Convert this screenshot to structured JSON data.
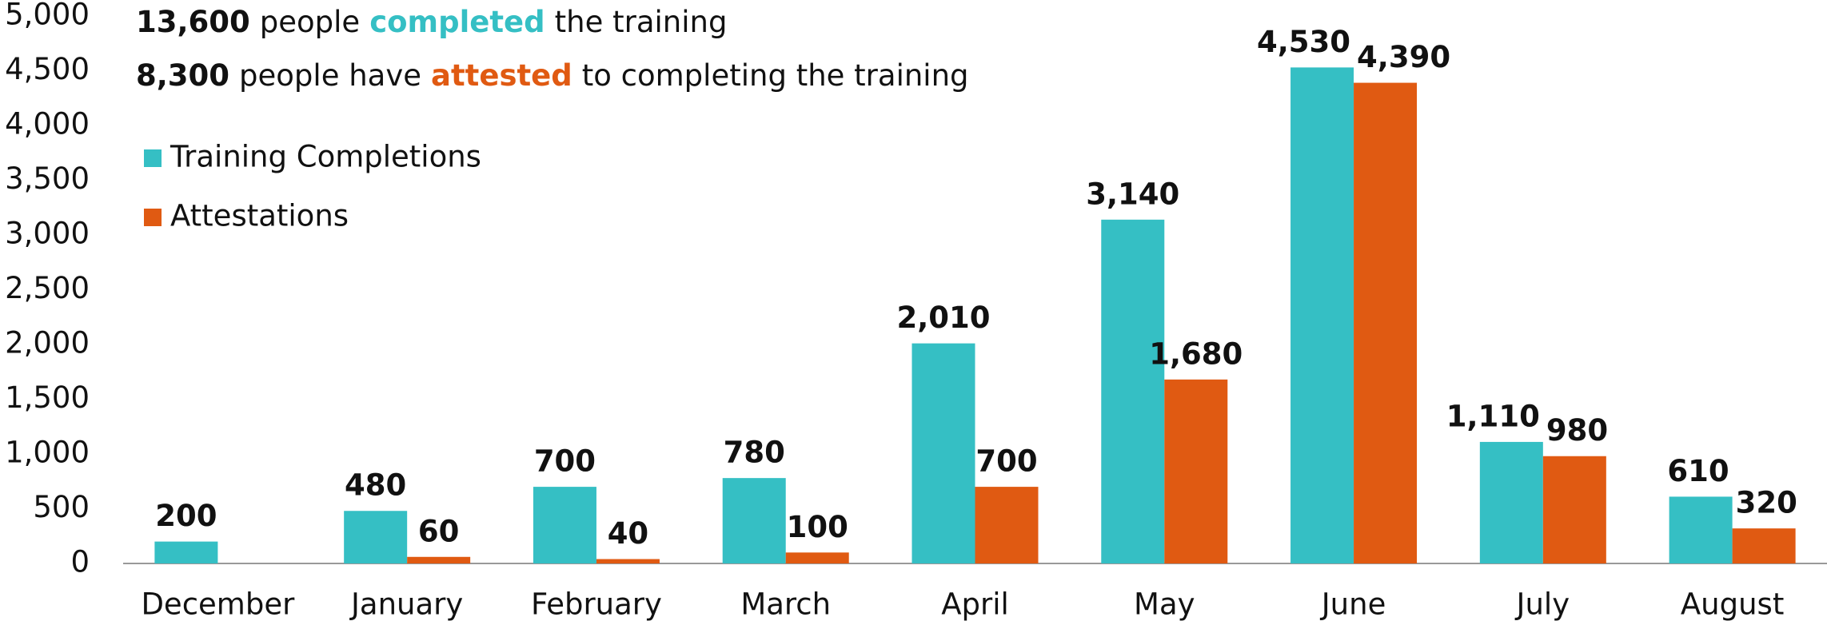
{
  "chart_data": {
    "type": "bar",
    "annotations": [
      {
        "number": "13,600",
        "before": "people",
        "highlight": "completed",
        "after": "the training",
        "color": "#35bfc4"
      },
      {
        "number": "8,300",
        "before": "people have",
        "highlight": "attested",
        "after": "to completing the training",
        "color": "#e05a12"
      }
    ],
    "categories": [
      "December",
      "January",
      "February",
      "March",
      "April",
      "May",
      "June",
      "July",
      "August"
    ],
    "series": [
      {
        "name": "Training Completions",
        "color": "#35bfc4",
        "values": [
          200,
          480,
          700,
          780,
          2010,
          3140,
          4530,
          1110,
          610
        ],
        "value_labels": [
          "200",
          "480",
          "700",
          "780",
          "2,010",
          "3,140",
          "4,530",
          "1,110",
          "610"
        ]
      },
      {
        "name": "Attestations",
        "color": "#e05a12",
        "values": [
          null,
          60,
          40,
          100,
          700,
          1680,
          4390,
          980,
          320
        ],
        "value_labels": [
          null,
          "60",
          "40",
          "100",
          "700",
          "1,680",
          "4,390",
          "980",
          "320"
        ]
      }
    ],
    "ylim": [
      0,
      5000
    ],
    "yticks": [
      0,
      500,
      {
        "value": 1000,
        "label": "1,000"
      },
      {
        "value": 1500,
        "label": "1,500"
      },
      {
        "value": 2000,
        "label": "2,000"
      },
      {
        "value": 2500,
        "label": "2,500"
      },
      {
        "value": 3000,
        "label": "3,000"
      },
      {
        "value": 3500,
        "label": "3,500"
      },
      {
        "value": 4000,
        "label": "4,000"
      },
      {
        "value": 4500,
        "label": "4,500"
      },
      {
        "value": 5000,
        "label": "5,000"
      }
    ],
    "grid": false,
    "legend": "upper left"
  }
}
